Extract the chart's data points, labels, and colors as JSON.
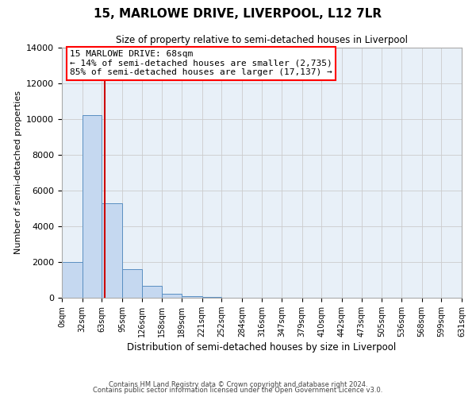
{
  "title": "15, MARLOWE DRIVE, LIVERPOOL, L12 7LR",
  "subtitle": "Size of property relative to semi-detached houses in Liverpool",
  "xlabel": "Distribution of semi-detached houses by size in Liverpool",
  "ylabel": "Number of semi-detached properties",
  "annotation_line1": "15 MARLOWE DRIVE: 68sqm",
  "annotation_line2": "← 14% of semi-detached houses are smaller (2,735)",
  "annotation_line3": "85% of semi-detached houses are larger (17,137) →",
  "property_sqm": 68,
  "bin_edges": [
    0,
    32,
    63,
    95,
    126,
    158,
    189,
    221,
    252,
    284,
    316,
    347,
    379,
    410,
    442,
    473,
    505,
    536,
    568,
    599,
    631
  ],
  "bin_labels": [
    "0sqm",
    "32sqm",
    "63sqm",
    "95sqm",
    "126sqm",
    "158sqm",
    "189sqm",
    "221sqm",
    "252sqm",
    "284sqm",
    "316sqm",
    "347sqm",
    "379sqm",
    "410sqm",
    "442sqm",
    "473sqm",
    "505sqm",
    "536sqm",
    "568sqm",
    "599sqm",
    "631sqm"
  ],
  "counts": [
    2000,
    10200,
    5300,
    1600,
    650,
    230,
    90,
    50,
    0,
    0,
    0,
    0,
    0,
    0,
    0,
    0,
    0,
    0,
    0,
    0
  ],
  "bar_color": "#c5d8f0",
  "bar_edge_color": "#5a8fc2",
  "marker_color": "#cc0000",
  "ylim": [
    0,
    14000
  ],
  "yticks": [
    0,
    2000,
    4000,
    6000,
    8000,
    10000,
    12000,
    14000
  ],
  "background_color": "#ffffff",
  "plot_bg_color": "#e8f0f8",
  "grid_color": "#cccccc",
  "footer_line1": "Contains HM Land Registry data © Crown copyright and database right 2024.",
  "footer_line2": "Contains public sector information licensed under the Open Government Licence v3.0."
}
